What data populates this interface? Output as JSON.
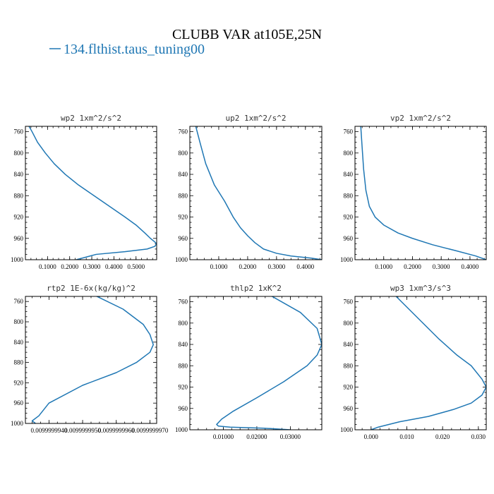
{
  "figure": {
    "title": "CLUBB VAR at105E,25N",
    "legend_label": "134.flthist.taus_tuning00",
    "line_color": "#1f77b4"
  },
  "chart_data": [
    {
      "type": "line",
      "title": "wp2  1xm^2/s^2",
      "xlim": [
        0.0,
        0.5933
      ],
      "ylim": [
        1000,
        750
      ],
      "yticks": [
        760,
        800,
        840,
        880,
        920,
        960,
        1000
      ],
      "xticks": [
        0.1,
        0.2,
        0.3,
        0.4,
        0.5
      ],
      "xtick_labels": [
        "0.1000",
        "0.2000",
        "0.3000",
        "0.4000",
        "0.5000"
      ],
      "series": [
        {
          "x": [
            0.015,
            0.03,
            0.055,
            0.09,
            0.13,
            0.18,
            0.24,
            0.31,
            0.38,
            0.45,
            0.5,
            0.54,
            0.565,
            0.58,
            0.5933,
            0.585,
            0.55,
            0.45,
            0.32,
            0.23
          ],
          "y": [
            749,
            760,
            780,
            800,
            820,
            840,
            860,
            880,
            900,
            920,
            935,
            950,
            960,
            965,
            970,
            975,
            980,
            985,
            990,
            1000
          ]
        }
      ]
    },
    {
      "type": "line",
      "title": "up2  1xm^2/s^2",
      "xlim": [
        0.0,
        0.4567
      ],
      "ylim": [
        1000,
        750
      ],
      "yticks": [
        760,
        800,
        840,
        880,
        920,
        960,
        1000
      ],
      "xticks": [
        0.1,
        0.2,
        0.3,
        0.4
      ],
      "xtick_labels": [
        "0.1000",
        "0.2000",
        "0.3000",
        "0.4000"
      ],
      "series": [
        {
          "x": [
            0.02,
            0.035,
            0.055,
            0.085,
            0.12,
            0.15,
            0.175,
            0.2,
            0.225,
            0.255,
            0.3,
            0.35,
            0.42,
            0.4567
          ],
          "y": [
            749,
            780,
            820,
            860,
            890,
            920,
            940,
            955,
            968,
            980,
            988,
            993,
            997,
            1000
          ]
        }
      ]
    },
    {
      "type": "line",
      "title": "vp2  1xm^2/s^2",
      "xlim": [
        0.0,
        0.4567
      ],
      "ylim": [
        1000,
        750
      ],
      "yticks": [
        760,
        800,
        840,
        880,
        920,
        960,
        1000
      ],
      "xticks": [
        0.1,
        0.2,
        0.3,
        0.4
      ],
      "xtick_labels": [
        "0.1000",
        "0.2000",
        "0.3000",
        "0.4000"
      ],
      "series": [
        {
          "x": [
            0.02,
            0.025,
            0.03,
            0.038,
            0.05,
            0.07,
            0.1,
            0.15,
            0.2,
            0.27,
            0.35,
            0.42,
            0.4567
          ],
          "y": [
            749,
            790,
            830,
            870,
            900,
            920,
            935,
            950,
            960,
            972,
            983,
            993,
            1000
          ]
        }
      ]
    },
    {
      "type": "line",
      "title": "rtp2  1E-6x(kg/kg)^2",
      "xlim": [
        0.00999999933,
        0.00999999972
      ],
      "ylim": [
        1000,
        750
      ],
      "yticks": [
        760,
        800,
        840,
        880,
        920,
        960,
        1000
      ],
      "xticks": [
        0.0099999994,
        0.0099999995,
        0.0099999996,
        0.0099999997
      ],
      "xtick_labels": [
        "0.0099999940",
        "0.0099999950",
        "0.0099999960",
        "0.0099999970"
      ],
      "series": [
        {
          "x": [
            0.00999999953,
            0.00999999962,
            0.00999999968,
            0.0099999997,
            0.00999999971,
            0.0099999997,
            0.00999999966,
            0.0099999996,
            0.0099999995,
            0.0099999994,
            0.00999999937,
            0.00999999935,
            0.00999999936
          ],
          "y": [
            746,
            775,
            805,
            825,
            845,
            860,
            880,
            900,
            925,
            960,
            985,
            995,
            1000
          ]
        }
      ]
    },
    {
      "type": "line",
      "title": "thlp2  1xK^2",
      "xlim": [
        0.0,
        0.0394
      ],
      "ylim": [
        1000,
        750
      ],
      "yticks": [
        760,
        800,
        840,
        880,
        920,
        960,
        1000
      ],
      "xticks": [
        0.01,
        0.02,
        0.03
      ],
      "xtick_labels": [
        "0.01000",
        "0.02000",
        "0.03000"
      ],
      "series": [
        {
          "x": [
            0.024,
            0.033,
            0.038,
            0.0394,
            0.038,
            0.035,
            0.028,
            0.02,
            0.013,
            0.0095,
            0.008,
            0.0085,
            0.012,
            0.022,
            0.03
          ],
          "y": [
            748,
            780,
            810,
            840,
            860,
            880,
            910,
            940,
            965,
            980,
            990,
            993,
            995,
            997,
            1000
          ]
        }
      ]
    },
    {
      "type": "line",
      "title": "wp3  1xm^3/s^3",
      "xlim": [
        -0.0045,
        0.0322
      ],
      "ylim": [
        1000,
        750
      ],
      "yticks": [
        760,
        800,
        840,
        880,
        920,
        960,
        1000
      ],
      "xticks": [
        0.0,
        0.01,
        0.02,
        0.03
      ],
      "xtick_labels": [
        "0.000",
        "0.010",
        "0.020",
        "0.030"
      ],
      "series": [
        {
          "x": [
            0.007,
            0.013,
            0.019,
            0.024,
            0.028,
            0.031,
            0.0322,
            0.031,
            0.028,
            0.023,
            0.016,
            0.008,
            0.002,
            0.0
          ],
          "y": [
            750,
            790,
            830,
            860,
            880,
            905,
            920,
            935,
            950,
            962,
            975,
            985,
            995,
            1000
          ]
        }
      ]
    }
  ]
}
